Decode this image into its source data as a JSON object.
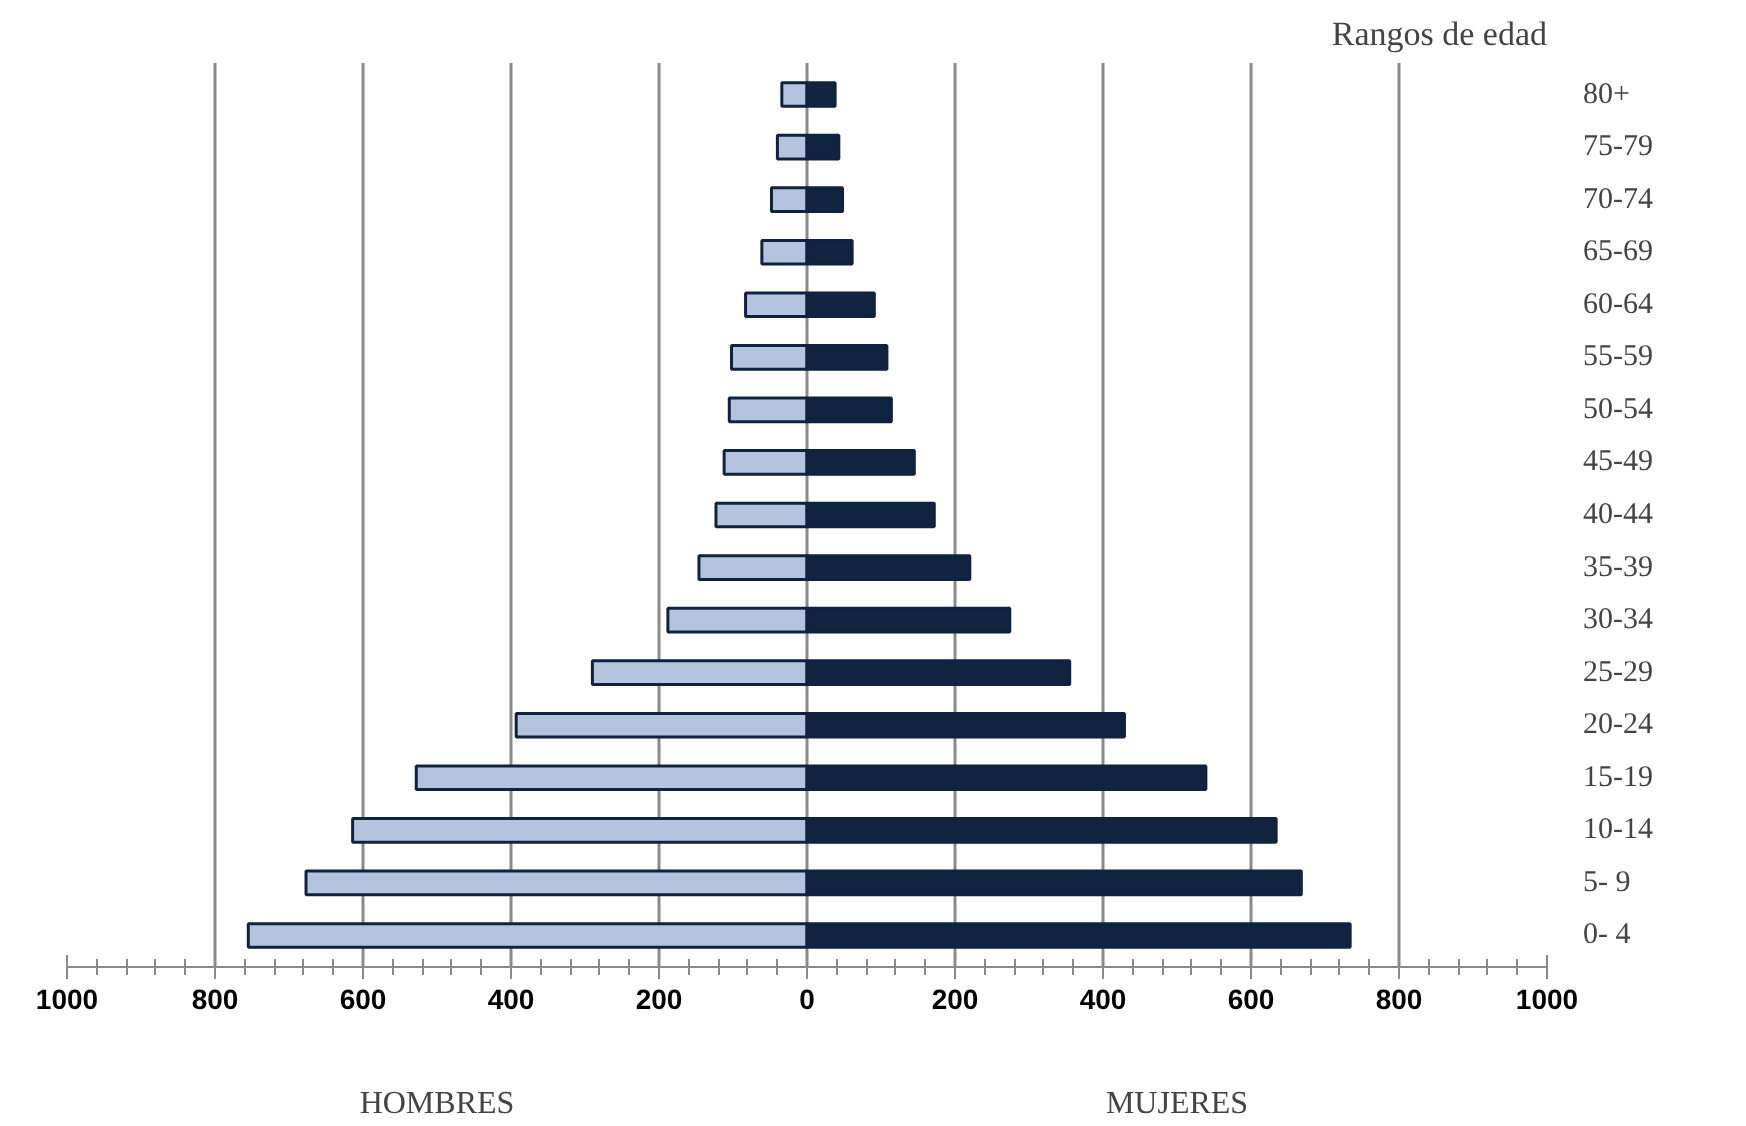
{
  "chart_data": {
    "type": "bar",
    "orientation": "horizontal",
    "stacked": true,
    "ylabel": "Rangos de edad",
    "annotations": [
      "HOMBRES",
      "MUJERES"
    ],
    "categories": [
      "80+",
      "75-79",
      "70-74",
      "65-69",
      "60-64",
      "55-59",
      "50-54",
      "45-49",
      "40-44",
      "35-39",
      "30-34",
      "25-29",
      "20-24",
      "15-19",
      "10-14",
      "5- 9",
      "0- 4"
    ],
    "series": [
      {
        "color": "#b4c4de",
        "values": [
          -34,
          -40,
          -48,
          -61,
          -83,
          -102,
          -105,
          -112,
          -123,
          -146,
          -188,
          -290,
          -393,
          -528,
          -614,
          -677,
          -755
        ]
      },
      {
        "color": "#10243f",
        "values": [
          38,
          43,
          48,
          61,
          91,
          108,
          114,
          145,
          172,
          220,
          274,
          355,
          429,
          539,
          634,
          668,
          734
        ]
      }
    ],
    "xlim": [
      -1000,
      1000
    ],
    "xticks": [
      {
        "value": -1000,
        "label": "1000"
      },
      {
        "value": -800,
        "label": "800"
      },
      {
        "value": -600,
        "label": "600"
      },
      {
        "value": -400,
        "label": "400"
      },
      {
        "value": -200,
        "label": "200"
      },
      0,
      200,
      400,
      600,
      800,
      1000
    ],
    "grid": "x"
  }
}
